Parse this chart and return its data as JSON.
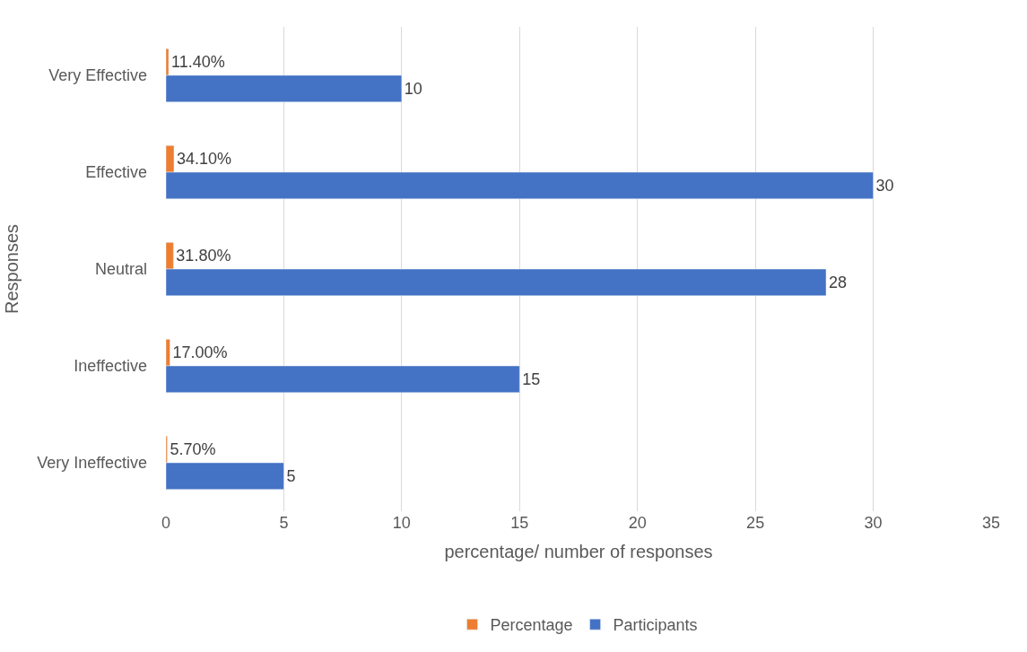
{
  "chart_data": {
    "type": "bar",
    "orientation": "horizontal",
    "xlabel": "percentage/ number of responses",
    "ylabel": "Responses",
    "categories": [
      "Very Effective",
      "Effective",
      "Neutral",
      "Ineffective",
      "Very Ineffective"
    ],
    "series": [
      {
        "name": "Percentage",
        "color": "#ed7d31",
        "values": [
          0.114,
          0.341,
          0.318,
          0.17,
          0.057
        ],
        "value_labels": [
          "11.40%",
          "34.10%",
          "31.80%",
          "17.00%",
          "5.70%"
        ]
      },
      {
        "name": "Participants",
        "color": "#4472c4",
        "values": [
          10,
          30,
          28,
          15,
          5
        ],
        "value_labels": [
          "10",
          "30",
          "28",
          "15",
          "5"
        ]
      }
    ],
    "xlim": [
      0,
      35
    ],
    "xticks": [
      0,
      5,
      10,
      15,
      20,
      25,
      30,
      35
    ],
    "grid": "x",
    "legend": "bottom"
  }
}
